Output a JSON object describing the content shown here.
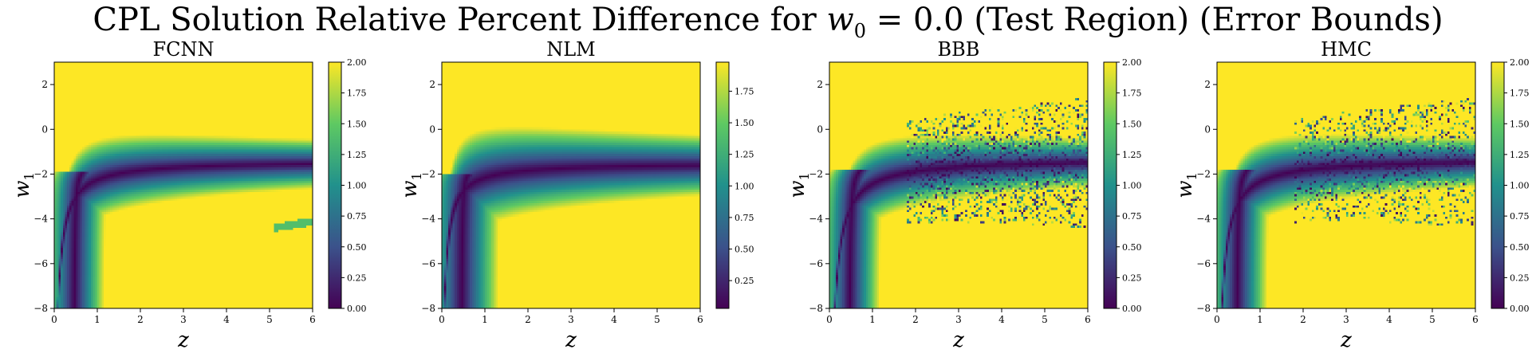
{
  "figure": {
    "title_prefix": "CPL Solution Relative Percent Difference for",
    "title_math_symbol": "w",
    "title_math_subscript": "0",
    "title_math_value": "= 0.0",
    "title_suffix": "(Test Region) (Error Bounds)"
  },
  "chart_data": [
    {
      "type": "heatmap",
      "title": "FCNN",
      "xlabel": "z",
      "ylabel": "w",
      "ylabel_subscript": "1",
      "xlim": [
        0,
        6
      ],
      "ylim": [
        -8,
        3
      ],
      "xticks": [
        "0",
        "1",
        "2",
        "3",
        "4",
        "5",
        "6"
      ],
      "yticks": [
        "2",
        "0",
        "−2",
        "−4",
        "−6",
        "−8"
      ],
      "colorbar": {
        "min": 0,
        "max": 2.0,
        "ticks": [
          "0.00",
          "0.25",
          "0.50",
          "0.75",
          "1.00",
          "1.25",
          "1.50",
          "1.75",
          "2.00"
        ]
      },
      "colormap": [
        "#440154",
        "#3b528b",
        "#21918c",
        "#5ec962",
        "#fde725"
      ],
      "noise": 0.0,
      "min_value_curve": {
        "w1_limit": -1.4,
        "shape": "w1 ≈ -1.4 - 0.9/(z + 0.05)"
      }
    },
    {
      "type": "heatmap",
      "title": "NLM",
      "xlabel": "z",
      "ylabel": "w",
      "ylabel_subscript": "1",
      "xlim": [
        0,
        6
      ],
      "ylim": [
        -8,
        3
      ],
      "xticks": [
        "0",
        "1",
        "2",
        "3",
        "4",
        "5",
        "6"
      ],
      "yticks": [
        "2",
        "0",
        "−2",
        "−4",
        "−6",
        "−8"
      ],
      "colorbar": {
        "min": 0.03,
        "max": 1.98,
        "ticks": [
          "0.25",
          "0.50",
          "0.75",
          "1.00",
          "1.25",
          "1.50",
          "1.75"
        ]
      },
      "colormap": [
        "#440154",
        "#3b528b",
        "#21918c",
        "#5ec962",
        "#fde725"
      ],
      "noise": 0.0,
      "min_value_curve": {
        "w1_limit": -1.5,
        "shape": "w1 ≈ -1.5 - 0.7/(z + 0.05)"
      }
    },
    {
      "type": "heatmap",
      "title": "BBB",
      "xlabel": "z",
      "ylabel": "w",
      "ylabel_subscript": "1",
      "xlim": [
        0,
        6
      ],
      "ylim": [
        -8,
        3
      ],
      "xticks": [
        "0",
        "1",
        "2",
        "3",
        "4",
        "5",
        "6"
      ],
      "yticks": [
        "2",
        "0",
        "−2",
        "−4",
        "−6",
        "−8"
      ],
      "colorbar": {
        "min": 0,
        "max": 2.0,
        "ticks": [
          "0.00",
          "0.25",
          "0.50",
          "0.75",
          "1.00",
          "1.25",
          "1.50",
          "1.75",
          "2.00"
        ]
      },
      "colormap": [
        "#440154",
        "#3b528b",
        "#21918c",
        "#5ec962",
        "#fde725"
      ],
      "noise": 1.0,
      "min_value_curve": {
        "w1_limit": -1.3,
        "shape": "w1 ≈ -1.3 - 1.2/(z + 0.05)"
      }
    },
    {
      "type": "heatmap",
      "title": "HMC",
      "xlabel": "z",
      "ylabel": "w",
      "ylabel_subscript": "1",
      "xlim": [
        0,
        6
      ],
      "ylim": [
        -8,
        3
      ],
      "xticks": [
        "0",
        "1",
        "2",
        "3",
        "4",
        "5",
        "6"
      ],
      "yticks": [
        "2",
        "0",
        "−2",
        "−4",
        "−6",
        "−8"
      ],
      "colorbar": {
        "min": 0,
        "max": 2.0,
        "ticks": [
          "0.00",
          "0.25",
          "0.50",
          "0.75",
          "1.00",
          "1.25",
          "1.50",
          "1.75",
          "2.00"
        ]
      },
      "colormap": [
        "#440154",
        "#3b528b",
        "#21918c",
        "#5ec962",
        "#fde725"
      ],
      "noise": 0.8,
      "min_value_curve": {
        "w1_limit": -1.3,
        "shape": "w1 ≈ -1.3 - 1.1/(z + 0.05)"
      }
    }
  ]
}
